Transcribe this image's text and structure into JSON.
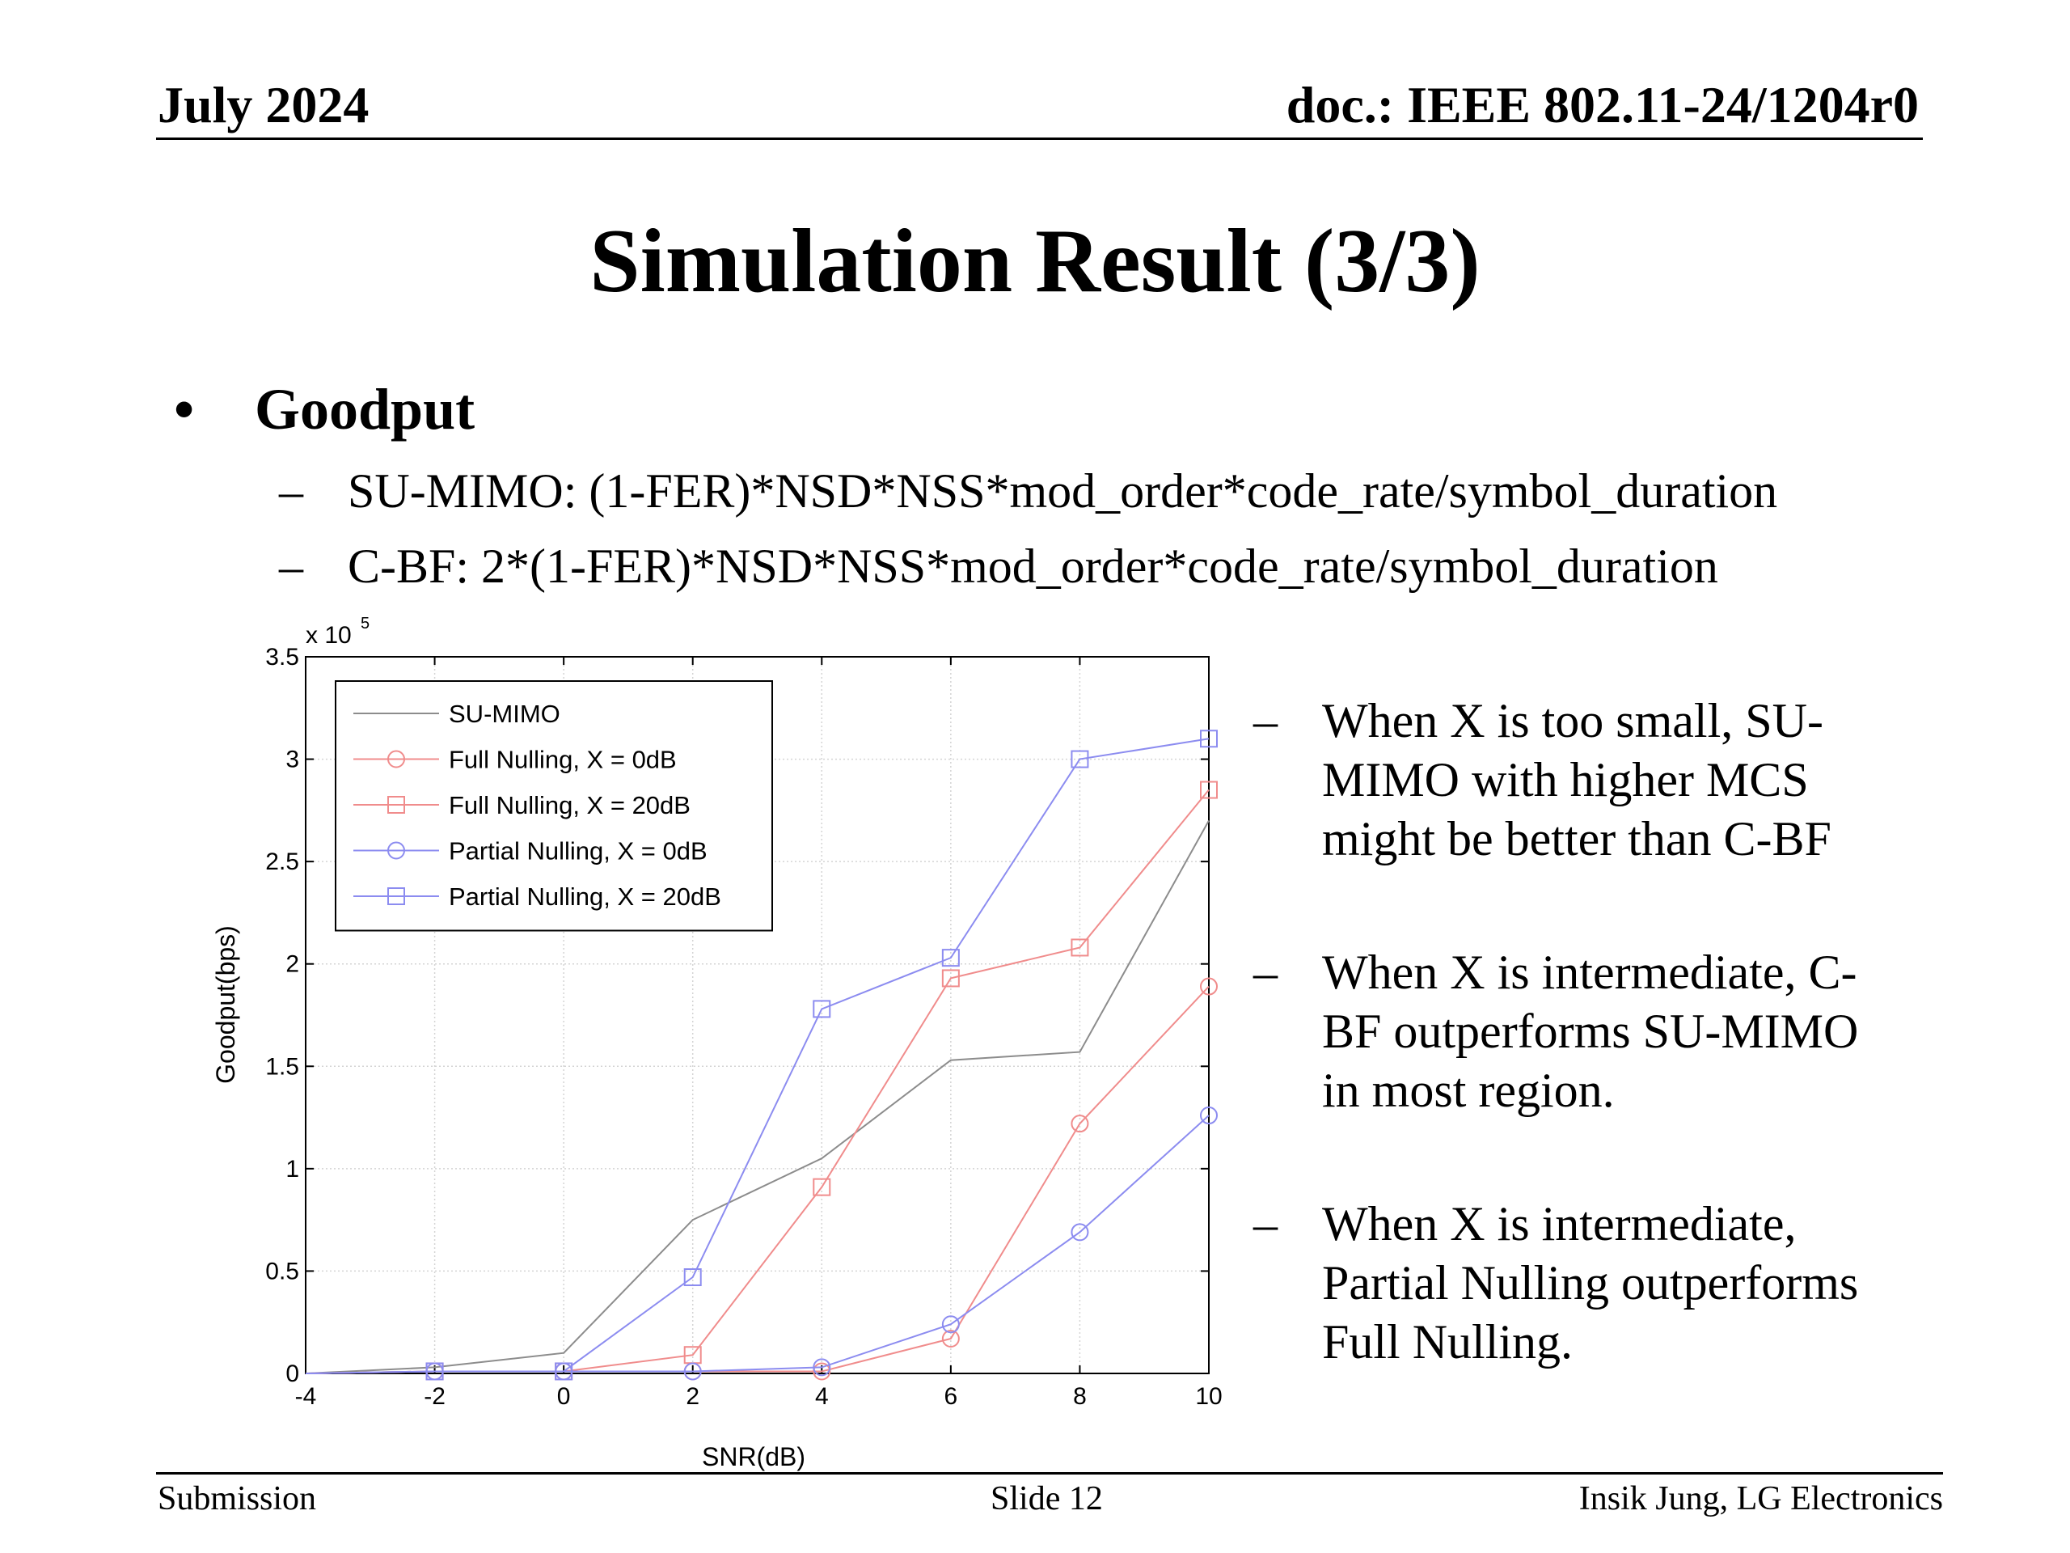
{
  "header": {
    "date": "July 2024",
    "doc": "doc.: IEEE 802.11-24/1204r0"
  },
  "title": "Simulation Result (3/3)",
  "bullet": {
    "marker": "•",
    "label": "Goodput",
    "items": [
      {
        "dash": "–",
        "text": "SU-MIMO: (1-FER)*NSD*NSS*mod_order*code_rate/symbol_duration"
      },
      {
        "dash": "–",
        "text": "C-BF: 2*(1-FER)*NSD*NSS*mod_order*code_rate/symbol_duration"
      }
    ]
  },
  "notes": [
    {
      "dash": "–",
      "text": "When X is too small, SU-\nMIMO with higher MCS\nmight be better than C-BF"
    },
    {
      "dash": "–",
      "text": "When X is intermediate, C-\nBF outperforms SU-MIMO\nin most region."
    },
    {
      "dash": "–",
      "text": "When X is intermediate,\nPartial Nulling outperforms\nFull Nulling."
    }
  ],
  "footer": {
    "left": "Submission",
    "center": "Slide 12",
    "right": "Insik Jung, LG Electronics"
  },
  "chart_data": {
    "type": "line",
    "xlabel": "SNR(dB)",
    "ylabel": "Goodput(bps)",
    "y_multiplier_label": "x 10",
    "y_multiplier_exp": "5",
    "xlim": [
      -4,
      10
    ],
    "ylim": [
      0,
      3.5
    ],
    "xticks": [
      -4,
      -2,
      0,
      2,
      4,
      6,
      8,
      10
    ],
    "xtick_labels": [
      "-4",
      "-2",
      "0",
      "2",
      "4",
      "6",
      "8",
      "10"
    ],
    "yticks": [
      0,
      0.5,
      1,
      1.5,
      2,
      2.5,
      3,
      3.5
    ],
    "ytick_labels": [
      "0",
      "0.5",
      "1",
      "1.5",
      "2",
      "2.5",
      "3",
      "3.5"
    ],
    "grid": true,
    "legend_position": "top-left",
    "x": [
      -4,
      -2,
      0,
      2,
      4,
      6,
      8,
      10
    ],
    "series": [
      {
        "name": "SU-MIMO",
        "color": "#8c8c8c",
        "marker": "none",
        "values": [
          0,
          0.03,
          0.1,
          0.75,
          1.05,
          1.53,
          1.57,
          2.7
        ]
      },
      {
        "name": "Full Nulling, X = 0dB",
        "color": "#f08c8c",
        "marker": "circle",
        "values": [
          0,
          0.01,
          0.01,
          0.01,
          0.01,
          0.17,
          1.22,
          1.89
        ]
      },
      {
        "name": "Full Nulling, X = 20dB",
        "color": "#f08c8c",
        "marker": "square",
        "values": [
          0,
          0.01,
          0.01,
          0.09,
          0.91,
          1.93,
          2.08,
          2.85
        ]
      },
      {
        "name": "Partial Nulling, X = 0dB",
        "color": "#8c8cf0",
        "marker": "circle",
        "values": [
          0,
          0.01,
          0.01,
          0.01,
          0.03,
          0.24,
          0.69,
          1.26
        ]
      },
      {
        "name": "Partial Nulling, X = 20dB",
        "color": "#8c8cf0",
        "marker": "square",
        "values": [
          0,
          0.01,
          0.01,
          0.47,
          1.78,
          2.03,
          3.0,
          3.1
        ]
      }
    ]
  }
}
